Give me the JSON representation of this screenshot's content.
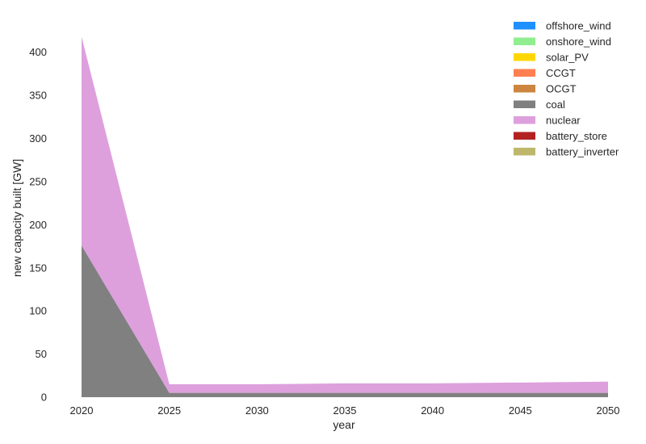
{
  "chart_data": {
    "type": "area",
    "stacked": true,
    "xlabel": "year",
    "ylabel": "new capacity built [GW]",
    "x": [
      2020,
      2025,
      2030,
      2035,
      2040,
      2045,
      2050
    ],
    "xticks": [
      "2020",
      "2025",
      "2030",
      "2035",
      "2040",
      "2045",
      "2050"
    ],
    "yticks": [
      "0",
      "50",
      "100",
      "150",
      "200",
      "250",
      "300",
      "350",
      "400"
    ],
    "xlim": [
      2020,
      2050
    ],
    "ylim": [
      0,
      425
    ],
    "grid": false,
    "legend_position": "top-right",
    "series": [
      {
        "name": "offshore_wind",
        "color": "#1e90ff",
        "values": [
          0,
          0,
          0,
          0,
          0,
          0,
          0
        ]
      },
      {
        "name": "onshore_wind",
        "color": "#90ee90",
        "values": [
          0,
          0,
          0,
          0,
          0,
          0,
          0
        ]
      },
      {
        "name": "solar_PV",
        "color": "#ffd700",
        "values": [
          0,
          0,
          0,
          0,
          0,
          0,
          0
        ]
      },
      {
        "name": "CCGT",
        "color": "#ff7f50",
        "values": [
          0,
          0,
          0,
          0,
          0,
          0,
          0
        ]
      },
      {
        "name": "OCGT",
        "color": "#cd853f",
        "values": [
          0,
          0,
          0,
          0,
          0,
          0,
          0
        ]
      },
      {
        "name": "coal",
        "color": "#808080",
        "values": [
          176,
          5,
          5,
          5,
          5,
          5,
          5
        ]
      },
      {
        "name": "nuclear",
        "color": "#dda0dd",
        "values": [
          242,
          10,
          10,
          11,
          11,
          12,
          13
        ]
      },
      {
        "name": "battery_store",
        "color": "#b22222",
        "values": [
          0,
          0,
          0,
          0,
          0,
          0,
          0
        ]
      },
      {
        "name": "battery_inverter",
        "color": "#bdb76b",
        "values": [
          0,
          0,
          0,
          0,
          0,
          0,
          0
        ]
      }
    ]
  }
}
